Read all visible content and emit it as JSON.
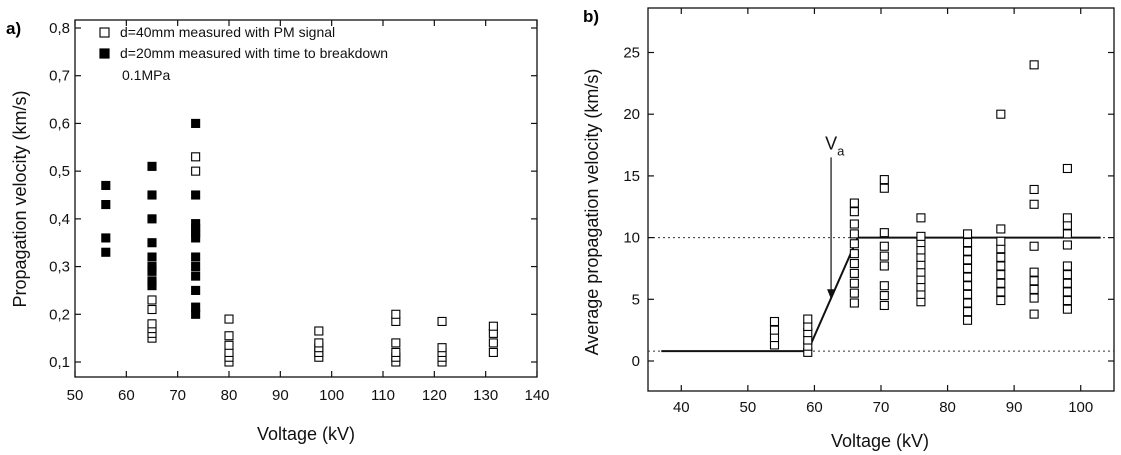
{
  "chart_data": [
    {
      "panel_label": "a)",
      "type": "scatter",
      "xlabel": "Voltage (kV)",
      "ylabel": "Propagation velocity (km/s)",
      "xlim": [
        50,
        140
      ],
      "ylim": [
        0.08,
        0.8
      ],
      "xticks": [
        "50",
        "60",
        "70",
        "80",
        "90",
        "100",
        "110",
        "120",
        "130",
        "140"
      ],
      "yticks": [
        "0,8",
        "0,7",
        "0,6",
        "0,5",
        "0,4",
        "0,3",
        "0,2",
        "0,1"
      ],
      "annotation": "0.1MPa",
      "legend_position": "top-left",
      "series": [
        {
          "name": "d=40mm measured with PM signal",
          "marker": "open-square",
          "points": [
            [
              65,
              0.15
            ],
            [
              65,
              0.16
            ],
            [
              65,
              0.17
            ],
            [
              65,
              0.18
            ],
            [
              65,
              0.21
            ],
            [
              65,
              0.23
            ],
            [
              73.5,
              0.53
            ],
            [
              73.5,
              0.5
            ],
            [
              80,
              0.1
            ],
            [
              80,
              0.11
            ],
            [
              80,
              0.12
            ],
            [
              80,
              0.135
            ],
            [
              80,
              0.155
            ],
            [
              80,
              0.19
            ],
            [
              97.5,
              0.11
            ],
            [
              97.5,
              0.12
            ],
            [
              97.5,
              0.13
            ],
            [
              97.5,
              0.14
            ],
            [
              97.5,
              0.165
            ],
            [
              112.5,
              0.1
            ],
            [
              112.5,
              0.11
            ],
            [
              112.5,
              0.12
            ],
            [
              112.5,
              0.14
            ],
            [
              112.5,
              0.185
            ],
            [
              112.5,
              0.2
            ],
            [
              121.5,
              0.1
            ],
            [
              121.5,
              0.11
            ],
            [
              121.5,
              0.12
            ],
            [
              121.5,
              0.13
            ],
            [
              121.5,
              0.185
            ],
            [
              131.5,
              0.12
            ],
            [
              131.5,
              0.14
            ],
            [
              131.5,
              0.16
            ],
            [
              131.5,
              0.175
            ]
          ]
        },
        {
          "name": "d=20mm measured with time to breakdown",
          "marker": "filled-square",
          "points": [
            [
              56,
              0.33
            ],
            [
              56,
              0.36
            ],
            [
              56,
              0.43
            ],
            [
              56,
              0.47
            ],
            [
              65,
              0.26
            ],
            [
              65,
              0.27
            ],
            [
              65,
              0.29
            ],
            [
              65,
              0.3
            ],
            [
              65,
              0.32
            ],
            [
              65,
              0.35
            ],
            [
              65,
              0.4
            ],
            [
              65,
              0.45
            ],
            [
              65,
              0.51
            ],
            [
              73.5,
              0.2
            ],
            [
              73.5,
              0.215
            ],
            [
              73.5,
              0.25
            ],
            [
              73.5,
              0.28
            ],
            [
              73.5,
              0.3
            ],
            [
              73.5,
              0.32
            ],
            [
              73.5,
              0.36
            ],
            [
              73.5,
              0.37
            ],
            [
              73.5,
              0.38
            ],
            [
              73.5,
              0.39
            ],
            [
              73.5,
              0.45
            ],
            [
              73.5,
              0.6
            ]
          ]
        }
      ]
    },
    {
      "panel_label": "b)",
      "type": "scatter",
      "xlabel": "Voltage (kV)",
      "ylabel": "Average propagation velocity (km/s)",
      "xlim": [
        35,
        105
      ],
      "ylim": [
        -3,
        27
      ],
      "xticks": [
        "40",
        "50",
        "60",
        "70",
        "80",
        "90",
        "100"
      ],
      "yticks": [
        "25",
        "20",
        "15",
        "10",
        "5",
        "0"
      ],
      "annotation": "V",
      "annotation_subscript": "a",
      "annotation_arrow": {
        "from": [
          62.5,
          16.5
        ],
        "to": [
          62.5,
          5.0
        ]
      },
      "reference_lines": [
        10,
        0.8
      ],
      "fit_line": [
        [
          37,
          0.8
        ],
        [
          59,
          0.8
        ],
        [
          66.5,
          10
        ],
        [
          103,
          10
        ]
      ],
      "series": [
        {
          "marker": "open-square",
          "points": [
            [
              54,
              1.3
            ],
            [
              54,
              1.9
            ],
            [
              54,
              2.5
            ],
            [
              54,
              3.2
            ],
            [
              59,
              0.7
            ],
            [
              59,
              1.2
            ],
            [
              59,
              1.7
            ],
            [
              59,
              2.3
            ],
            [
              59,
              2.8
            ],
            [
              59,
              3.4
            ],
            [
              66,
              4.7
            ],
            [
              66,
              5.5
            ],
            [
              66,
              6.3
            ],
            [
              66,
              7.1
            ],
            [
              66,
              7.9
            ],
            [
              66,
              8.7
            ],
            [
              66,
              9.5
            ],
            [
              66,
              10.3
            ],
            [
              66,
              11.1
            ],
            [
              66,
              12.1
            ],
            [
              66,
              12.8
            ],
            [
              70.5,
              4.5
            ],
            [
              70.5,
              5.3
            ],
            [
              70.5,
              6.1
            ],
            [
              70.5,
              7.7
            ],
            [
              70.5,
              8.5
            ],
            [
              70.5,
              9.3
            ],
            [
              70.5,
              10.4
            ],
            [
              70.5,
              14.0
            ],
            [
              70.5,
              14.7
            ],
            [
              76,
              4.8
            ],
            [
              76,
              5.4
            ],
            [
              76,
              6.0
            ],
            [
              76,
              6.6
            ],
            [
              76,
              7.2
            ],
            [
              76,
              7.8
            ],
            [
              76,
              8.4
            ],
            [
              76,
              9.0
            ],
            [
              76,
              9.6
            ],
            [
              76,
              10.1
            ],
            [
              76,
              11.6
            ],
            [
              83,
              3.3
            ],
            [
              83,
              4.0
            ],
            [
              83,
              4.7
            ],
            [
              83,
              5.4
            ],
            [
              83,
              6.1
            ],
            [
              83,
              6.8
            ],
            [
              83,
              7.5
            ],
            [
              83,
              8.2
            ],
            [
              83,
              8.9
            ],
            [
              83,
              9.6
            ],
            [
              83,
              10.3
            ],
            [
              88,
              4.9
            ],
            [
              88,
              5.6
            ],
            [
              88,
              6.3
            ],
            [
              88,
              7.0
            ],
            [
              88,
              7.7
            ],
            [
              88,
              8.4
            ],
            [
              88,
              9.1
            ],
            [
              88,
              9.7
            ],
            [
              88,
              10.7
            ],
            [
              88,
              20.0
            ],
            [
              93,
              3.8
            ],
            [
              93,
              5.1
            ],
            [
              93,
              5.8
            ],
            [
              93,
              6.5
            ],
            [
              93,
              7.2
            ],
            [
              93,
              9.3
            ],
            [
              93,
              12.7
            ],
            [
              93,
              13.9
            ],
            [
              93,
              24.0
            ],
            [
              98,
              4.2
            ],
            [
              98,
              4.9
            ],
            [
              98,
              5.6
            ],
            [
              98,
              6.3
            ],
            [
              98,
              7.0
            ],
            [
              98,
              7.7
            ],
            [
              98,
              9.4
            ],
            [
              98,
              10.3
            ],
            [
              98,
              11.0
            ],
            [
              98,
              11.6
            ],
            [
              98,
              15.6
            ]
          ]
        }
      ]
    }
  ]
}
